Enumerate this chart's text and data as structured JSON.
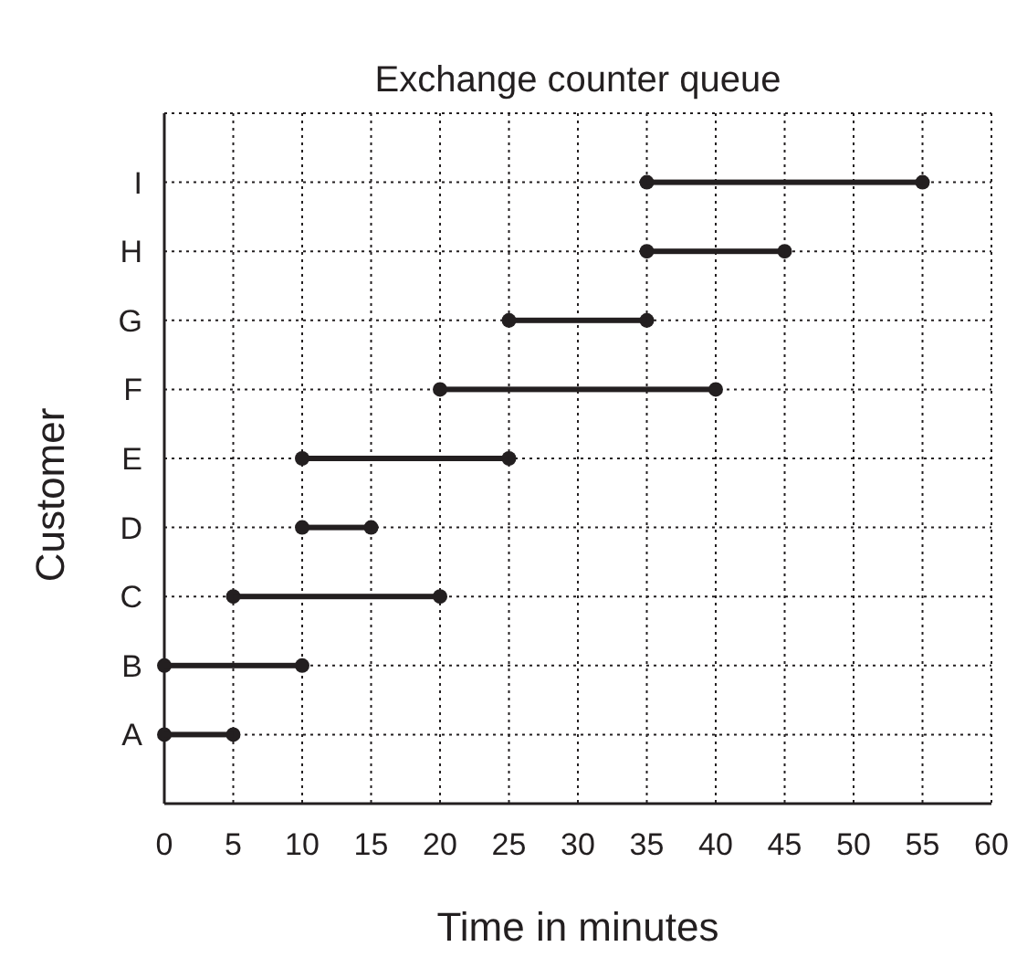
{
  "chart_data": {
    "type": "bar",
    "orientation": "horizontal",
    "title": "Exchange counter queue",
    "xlabel": "Time in minutes",
    "ylabel": "Customer",
    "categories": [
      "I",
      "H",
      "G",
      "F",
      "E",
      "D",
      "C",
      "B",
      "A"
    ],
    "series": [
      {
        "type": "bar",
        "color": "#231f20",
        "base": [
          35,
          35,
          25,
          20,
          10,
          10,
          5,
          0,
          0
        ],
        "values": [
          20,
          10,
          10,
          20,
          15,
          5,
          15,
          10,
          5
        ]
      },
      {
        "type": "scatter",
        "color": "#231f20",
        "values": [
          35,
          35,
          25,
          20,
          10,
          10,
          5,
          0,
          0
        ]
      },
      {
        "type": "scatter",
        "color": "#231f20",
        "values": [
          55,
          45,
          35,
          40,
          25,
          15,
          20,
          10,
          5
        ]
      }
    ],
    "marker": "circle",
    "grid": true,
    "xlim": [
      0,
      60
    ],
    "xticks": [
      0,
      5,
      10,
      15,
      20,
      25,
      30,
      35,
      40,
      45,
      50,
      55,
      60
    ]
  }
}
